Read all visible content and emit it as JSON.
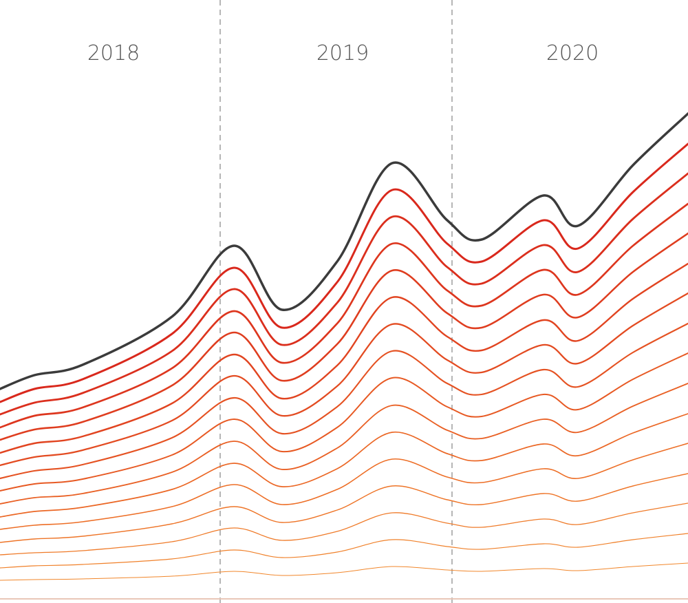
{
  "chart_data": {
    "type": "line",
    "period_labels": [
      "2018",
      "2019",
      "2020"
    ],
    "x": [
      0,
      50,
      120,
      250,
      340,
      410,
      490,
      570,
      650,
      700,
      790,
      840,
      920,
      1000
    ],
    "xlim": [
      0,
      1000
    ],
    "ylim": [
      0,
      700
    ],
    "series": [
      {
        "color": "#3b3b3b",
        "values": [
          297,
          317,
          332,
          402,
          505,
          412,
          482,
          625,
          542,
          514,
          578,
          534,
          622,
          697
        ]
      },
      {
        "color": "#d9281c",
        "values": [
          278,
          297,
          311,
          377,
          473,
          386,
          452,
          586,
          508,
          482,
          542,
          501,
          583,
          653
        ]
      },
      {
        "color": "#db2f1d",
        "values": [
          260,
          277,
          291,
          352,
          442,
          361,
          422,
          547,
          474,
          450,
          506,
          467,
          544,
          610
        ]
      },
      {
        "color": "#dd361e",
        "values": [
          241,
          258,
          270,
          327,
          410,
          335,
          392,
          508,
          440,
          418,
          470,
          434,
          505,
          566
        ]
      },
      {
        "color": "#df3d1f",
        "values": [
          223,
          238,
          249,
          302,
          379,
          309,
          362,
          469,
          407,
          386,
          434,
          401,
          467,
          523
        ]
      },
      {
        "color": "#e14420",
        "values": [
          204,
          218,
          228,
          276,
          347,
          283,
          331,
          430,
          373,
          353,
          397,
          367,
          428,
          479
        ]
      },
      {
        "color": "#e34b21",
        "values": [
          186,
          198,
          208,
          251,
          316,
          258,
          301,
          391,
          339,
          321,
          361,
          334,
          389,
          436
        ]
      },
      {
        "color": "#e55222",
        "values": [
          167,
          178,
          187,
          226,
          284,
          232,
          271,
          352,
          305,
          289,
          325,
          300,
          350,
          392
        ]
      },
      {
        "color": "#e75923",
        "values": [
          149,
          159,
          166,
          201,
          253,
          206,
          241,
          313,
          271,
          257,
          289,
          267,
          311,
          349
        ]
      },
      {
        "color": "#e96024",
        "values": [
          130,
          139,
          145,
          176,
          221,
          180,
          211,
          273,
          237,
          225,
          253,
          234,
          272,
          305
        ]
      },
      {
        "color": "#eb6725",
        "values": [
          111,
          119,
          125,
          151,
          189,
          155,
          181,
          234,
          203,
          193,
          217,
          200,
          233,
          261
        ]
      },
      {
        "color": "#ed6e26",
        "values": [
          93,
          99,
          104,
          126,
          158,
          129,
          151,
          195,
          169,
          161,
          181,
          167,
          194,
          218
        ]
      },
      {
        "color": "#ee7427",
        "values": [
          74,
          79,
          83,
          101,
          126,
          103,
          121,
          156,
          136,
          129,
          145,
          134,
          156,
          174
        ]
      },
      {
        "color": "#ef7a28",
        "values": [
          56,
          59,
          62,
          75,
          95,
          77,
          90,
          117,
          102,
          96,
          108,
          100,
          117,
          131
        ]
      },
      {
        "color": "#f08029",
        "values": [
          37,
          40,
          42,
          50,
          63,
          52,
          60,
          78,
          68,
          64,
          72,
          67,
          78,
          87
        ]
      },
      {
        "color": "#f1862a",
        "values": [
          19,
          20,
          21,
          25,
          32,
          26,
          30,
          39,
          34,
          32,
          36,
          33,
          39,
          44
        ]
      }
    ]
  }
}
